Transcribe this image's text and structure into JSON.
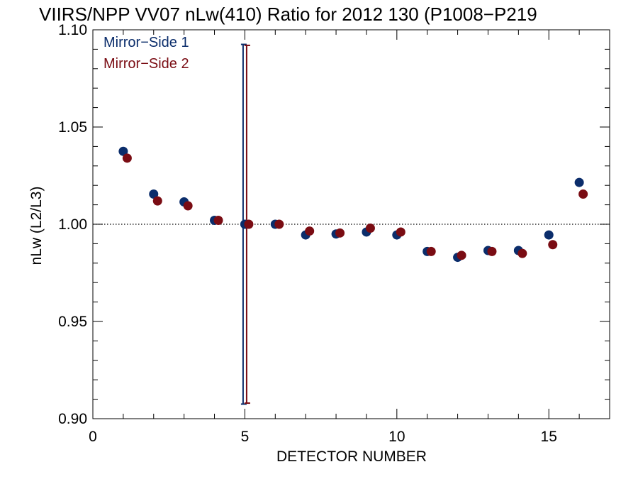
{
  "chart_data": {
    "type": "scatter",
    "title": "VIIRS/NPP VV07 nLw(410) Ratio for 2012 130 (P1008−P219",
    "xlabel": "DETECTOR NUMBER",
    "ylabel": "nLw (L2/L3)",
    "xlim": [
      0,
      17
    ],
    "ylim": [
      0.9,
      1.1
    ],
    "x_ticks": [
      0,
      5,
      10,
      15
    ],
    "x_tick_labels": [
      "0",
      "5",
      "10",
      "15"
    ],
    "y_ticks": [
      0.9,
      0.95,
      1.0,
      1.05,
      1.1
    ],
    "y_tick_labels": [
      "0.90",
      "0.95",
      "1.00",
      "1.05",
      "1.10"
    ],
    "reference_line": {
      "y": 1.0,
      "style": "dotted"
    },
    "legend_position": "top-left",
    "grid": false,
    "series": [
      {
        "name": "Mirror−Side 1",
        "color": "#0b2d6b",
        "x": [
          1,
          2,
          3,
          4,
          5,
          6,
          7,
          8,
          9,
          10,
          11,
          12,
          13,
          14,
          15,
          16
        ],
        "y": [
          1.0375,
          1.0155,
          1.0115,
          1.002,
          1.0,
          1.0,
          0.9945,
          0.995,
          0.996,
          0.9945,
          0.986,
          0.983,
          0.9865,
          0.9865,
          0.9945,
          1.0215
        ],
        "error_bar": {
          "x": 5,
          "low": 0.9075,
          "high": 1.0925
        }
      },
      {
        "name": "Mirror−Side 2",
        "color": "#7a0c13",
        "x": [
          1,
          2,
          3,
          4,
          5,
          6,
          7,
          8,
          9,
          10,
          11,
          12,
          13,
          14,
          15,
          16
        ],
        "y": [
          1.034,
          1.012,
          1.0095,
          1.002,
          1.0,
          1.0,
          0.9965,
          0.9955,
          0.998,
          0.996,
          0.986,
          0.984,
          0.986,
          0.985,
          0.9895,
          1.0155
        ],
        "error_bar": {
          "x": 5,
          "low": 0.908,
          "high": 1.092
        }
      }
    ]
  }
}
